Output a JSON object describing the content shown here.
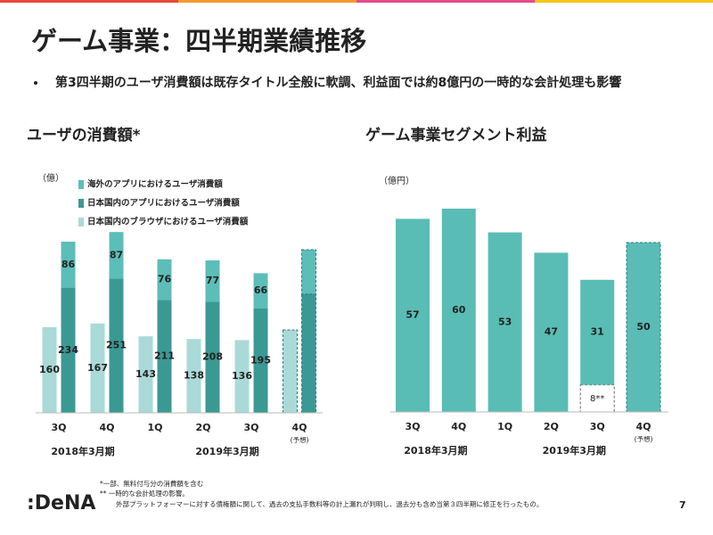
{
  "slide": {
    "title": "ゲーム事業：四半期業績推移",
    "bullet": "第3四半期のユーザ消費額は既存タイトル全般に軟調、利益面では約8億円の一時的な会計処理も影響",
    "footnotes": [
      "*一部、無料付与分の消費額を含む",
      "** 一時的な会計処理の影響。",
      "外部プラットフォーマーに対する債権額に関して、過去の支払手数料等の計上漏れが判明し、過去分も含め当第３四半期に修正を行ったもの。"
    ],
    "logo": ":DeNA",
    "page_number": "7"
  },
  "chart_data": [
    {
      "type": "bar",
      "title": "ユーザの消費額*",
      "unit_label": "（億）",
      "categories": [
        "3Q",
        "4Q",
        "1Q",
        "2Q",
        "3Q",
        "4Q"
      ],
      "groups": [
        {
          "label": "2018年3月期",
          "count": 2
        },
        {
          "label": "2019年3月期",
          "count": 4
        }
      ],
      "forecast": [
        false,
        false,
        false,
        false,
        false,
        true
      ],
      "forecast_label": "(予想)",
      "forecast_labels": false,
      "series": [
        {
          "name": "海外のアプリにおけるユーザ消費額",
          "color": "#5dbdb8",
          "stack": "app",
          "values": [
            86,
            87,
            76,
            77,
            66,
            83
          ]
        },
        {
          "name": "日本国内のアプリにおけるユーザ消費額",
          "color": "#3b9993",
          "stack": "app",
          "values": [
            234,
            251,
            211,
            208,
            195,
            222
          ]
        },
        {
          "name": "日本国内のブラウザにおけるユーザ消費額",
          "color": "#a9dad7",
          "stack": "browser",
          "values": [
            160,
            167,
            143,
            138,
            136,
            155
          ]
        }
      ],
      "ylim": [
        0,
        350
      ],
      "legend": "top-left"
    },
    {
      "type": "bar",
      "title": "ゲーム事業セグメント利益",
      "unit_label": "（億円）",
      "categories": [
        "3Q",
        "4Q",
        "1Q",
        "2Q",
        "3Q",
        "4Q"
      ],
      "groups": [
        {
          "label": "2018年3月期",
          "count": 2
        },
        {
          "label": "2019年3月期",
          "count": 4
        }
      ],
      "forecast": [
        false,
        false,
        false,
        false,
        false,
        true
      ],
      "forecast_label": "(予想)",
      "forecast_labels": true,
      "series": [
        {
          "color": "#59bdb5",
          "stack": "a",
          "values": [
            57,
            60,
            53,
            47,
            31,
            50
          ]
        },
        {
          "color": "#ffffff",
          "stack": "a",
          "style": "dashed",
          "values": [
            null,
            null,
            null,
            null,
            8,
            null
          ],
          "value_labels": [
            null,
            null,
            null,
            null,
            "8**",
            null
          ]
        }
      ],
      "ylim": [
        0,
        65
      ]
    }
  ]
}
